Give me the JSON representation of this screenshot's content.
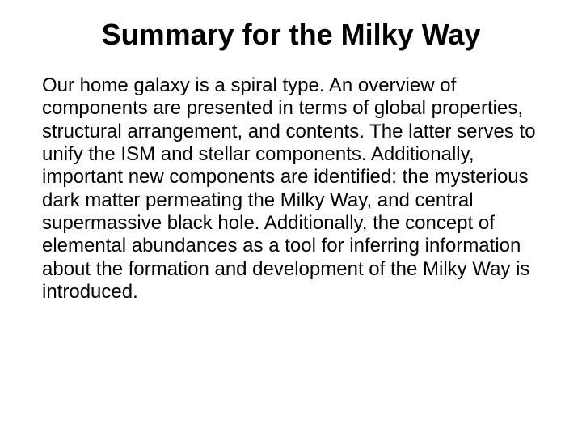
{
  "slide": {
    "title": "Summary for the Milky Way",
    "body": "Our home galaxy is a spiral type.  An overview of components are presented in terms of global properties, structural arrangement, and contents.  The latter serves to unify the ISM and stellar components.  Additionally, important new components are identified:  the mysterious dark matter permeating the Milky Way, and central supermassive black hole.  Additionally, the concept of elemental abundances as a tool for inferring information about the formation and development of the Milky Way is introduced."
  },
  "styles": {
    "background_color": "#ffffff",
    "title_fontsize": 36,
    "title_fontweight": "bold",
    "title_color": "#000000",
    "body_fontsize": 24,
    "body_color": "#000000",
    "font_family": "Arial"
  }
}
